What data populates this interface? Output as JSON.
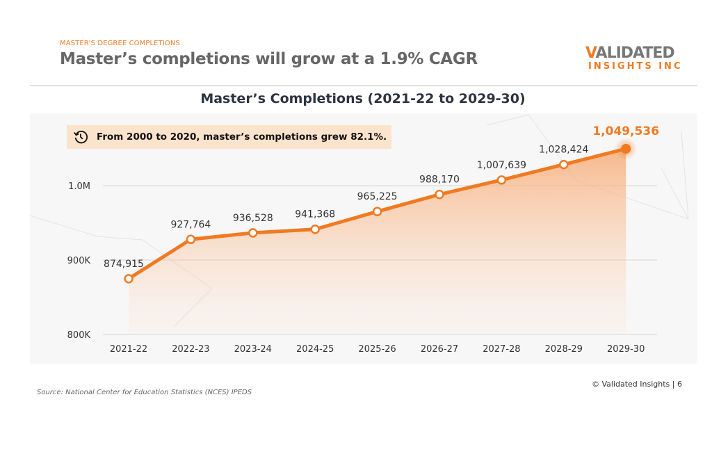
{
  "header": {
    "eyebrow": "MASTER'S DEGREE COMPLETIONS",
    "headline": "Master’s completions will grow at a 1.9% CAGR",
    "logo_line1": "VALIDATED",
    "logo_line2": "INSIGHTS INC"
  },
  "callout": {
    "icon": "history-clock-icon",
    "text": "From 2000 to 2020, master’s completions grew 82.1%."
  },
  "footer": {
    "copyright": "© Validated Insights | 6",
    "source": "Source: National Center for Education Statistics (NCES) IPEDS"
  },
  "colors": {
    "accent": "#f07a22",
    "title": "#2b3440",
    "headline": "#666666"
  },
  "chart_data": {
    "type": "line",
    "title": "Master’s Completions (2021-22 to 2029-30)",
    "categories": [
      "2021-22",
      "2022-23",
      "2023-24",
      "2024-25",
      "2025-26",
      "2026-27",
      "2027-28",
      "2028-29",
      "2029-30"
    ],
    "values": [
      874915,
      927764,
      936528,
      941368,
      965225,
      988170,
      1007639,
      1028424,
      1049536
    ],
    "data_labels": [
      "874,915",
      "927,764",
      "936,528",
      "941,368",
      "965,225",
      "988,170",
      "1,007,639",
      "1,028,424",
      "1,049,536"
    ],
    "ylim": [
      800000,
      1050000
    ],
    "yticks": [
      800000,
      900000,
      1000000
    ],
    "ytick_labels": [
      "800K",
      "900K",
      "1.0M"
    ],
    "grid": true,
    "area_fill": true,
    "highlight_last": true,
    "line_color": "#f07a22"
  }
}
